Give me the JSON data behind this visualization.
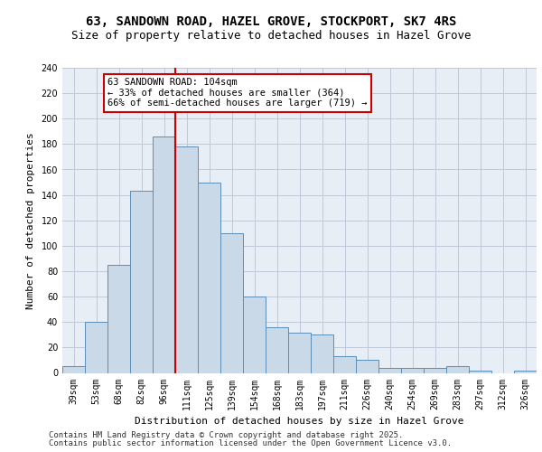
{
  "title_line1": "63, SANDOWN ROAD, HAZEL GROVE, STOCKPORT, SK7 4RS",
  "title_line2": "Size of property relative to detached houses in Hazel Grove",
  "xlabel": "Distribution of detached houses by size in Hazel Grove",
  "ylabel": "Number of detached properties",
  "categories": [
    "39sqm",
    "53sqm",
    "68sqm",
    "82sqm",
    "96sqm",
    "111sqm",
    "125sqm",
    "139sqm",
    "154sqm",
    "168sqm",
    "183sqm",
    "197sqm",
    "211sqm",
    "226sqm",
    "240sqm",
    "254sqm",
    "269sqm",
    "283sqm",
    "297sqm",
    "312sqm",
    "326sqm"
  ],
  "values": [
    5,
    40,
    85,
    143,
    186,
    178,
    150,
    110,
    60,
    36,
    32,
    30,
    13,
    10,
    4,
    4,
    4,
    5,
    2,
    0,
    2
  ],
  "bar_facecolor": "#c9d9e8",
  "bar_edgecolor": "#5b8db8",
  "redline_x": 4.5,
  "annotation_text": "63 SANDOWN ROAD: 104sqm\n← 33% of detached houses are smaller (364)\n66% of semi-detached houses are larger (719) →",
  "annotation_box_edgecolor": "#cc0000",
  "redline_color": "#cc0000",
  "ylim": [
    0,
    240
  ],
  "yticks": [
    0,
    20,
    40,
    60,
    80,
    100,
    120,
    140,
    160,
    180,
    200,
    220,
    240
  ],
  "grid_color": "#c0c8d8",
  "background_color": "#e8eef5",
  "footer_line1": "Contains HM Land Registry data © Crown copyright and database right 2025.",
  "footer_line2": "Contains public sector information licensed under the Open Government Licence v3.0.",
  "title_fontsize": 10,
  "subtitle_fontsize": 9,
  "axis_label_fontsize": 8,
  "tick_fontsize": 7,
  "annotation_fontsize": 7.5,
  "footer_fontsize": 6.5
}
